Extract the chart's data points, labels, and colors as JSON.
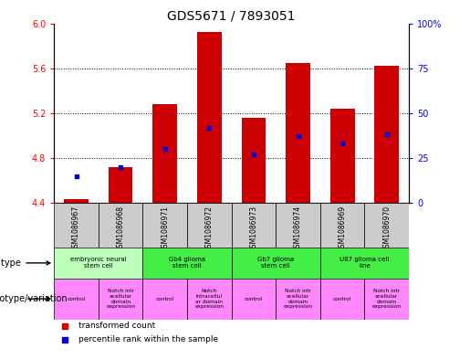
{
  "title": "GDS5671 / 7893051",
  "samples": [
    "GSM1086967",
    "GSM1086968",
    "GSM1086971",
    "GSM1086972",
    "GSM1086973",
    "GSM1086974",
    "GSM1086969",
    "GSM1086970"
  ],
  "transformed_counts": [
    4.43,
    4.72,
    5.28,
    5.92,
    5.16,
    5.65,
    5.24,
    5.62
  ],
  "percentile_ranks": [
    15,
    20,
    30,
    42,
    27,
    37,
    33,
    38
  ],
  "ylim_left": [
    4.4,
    6.0
  ],
  "ylim_right": [
    0,
    100
  ],
  "yticks_left": [
    4.4,
    4.8,
    5.2,
    5.6,
    6.0
  ],
  "yticks_right": [
    0,
    25,
    50,
    75,
    100
  ],
  "cell_types": [
    {
      "label": "embryonic neural\nstem cell",
      "span": [
        0,
        2
      ],
      "color": "#bbffbb"
    },
    {
      "label": "Gb4 glioma\nstem cell",
      "span": [
        2,
        4
      ],
      "color": "#44ee44"
    },
    {
      "label": "Gb7 glioma\nstem cell",
      "span": [
        4,
        6
      ],
      "color": "#44ee44"
    },
    {
      "label": "U87 glioma cell\nline",
      "span": [
        6,
        8
      ],
      "color": "#44ee44"
    }
  ],
  "genotypes": [
    {
      "label": "control",
      "span": [
        0,
        1
      ],
      "color": "#ff88ff"
    },
    {
      "label": "Notch intr\nacellular\ndomain\nexpression",
      "span": [
        1,
        2
      ],
      "color": "#ff88ff"
    },
    {
      "label": "control",
      "span": [
        2,
        3
      ],
      "color": "#ff88ff"
    },
    {
      "label": "Notch\nintracellul\nar domain\nexpression",
      "span": [
        3,
        4
      ],
      "color": "#ff88ff"
    },
    {
      "label": "control",
      "span": [
        4,
        5
      ],
      "color": "#ff88ff"
    },
    {
      "label": "Notch intr\nacellular\ndomain\nexpression",
      "span": [
        5,
        6
      ],
      "color": "#ff88ff"
    },
    {
      "label": "control",
      "span": [
        6,
        7
      ],
      "color": "#ff88ff"
    },
    {
      "label": "Notch intr\nacellular\ndomain\nexpression",
      "span": [
        7,
        8
      ],
      "color": "#ff88ff"
    }
  ],
  "bar_color": "#cc0000",
  "dot_color": "#0000cc",
  "bar_bottom": 4.4,
  "background_color": "#ffffff",
  "gsm_row_color": "#cccccc",
  "title_fontsize": 10,
  "tick_fontsize": 7,
  "label_fontsize": 7
}
